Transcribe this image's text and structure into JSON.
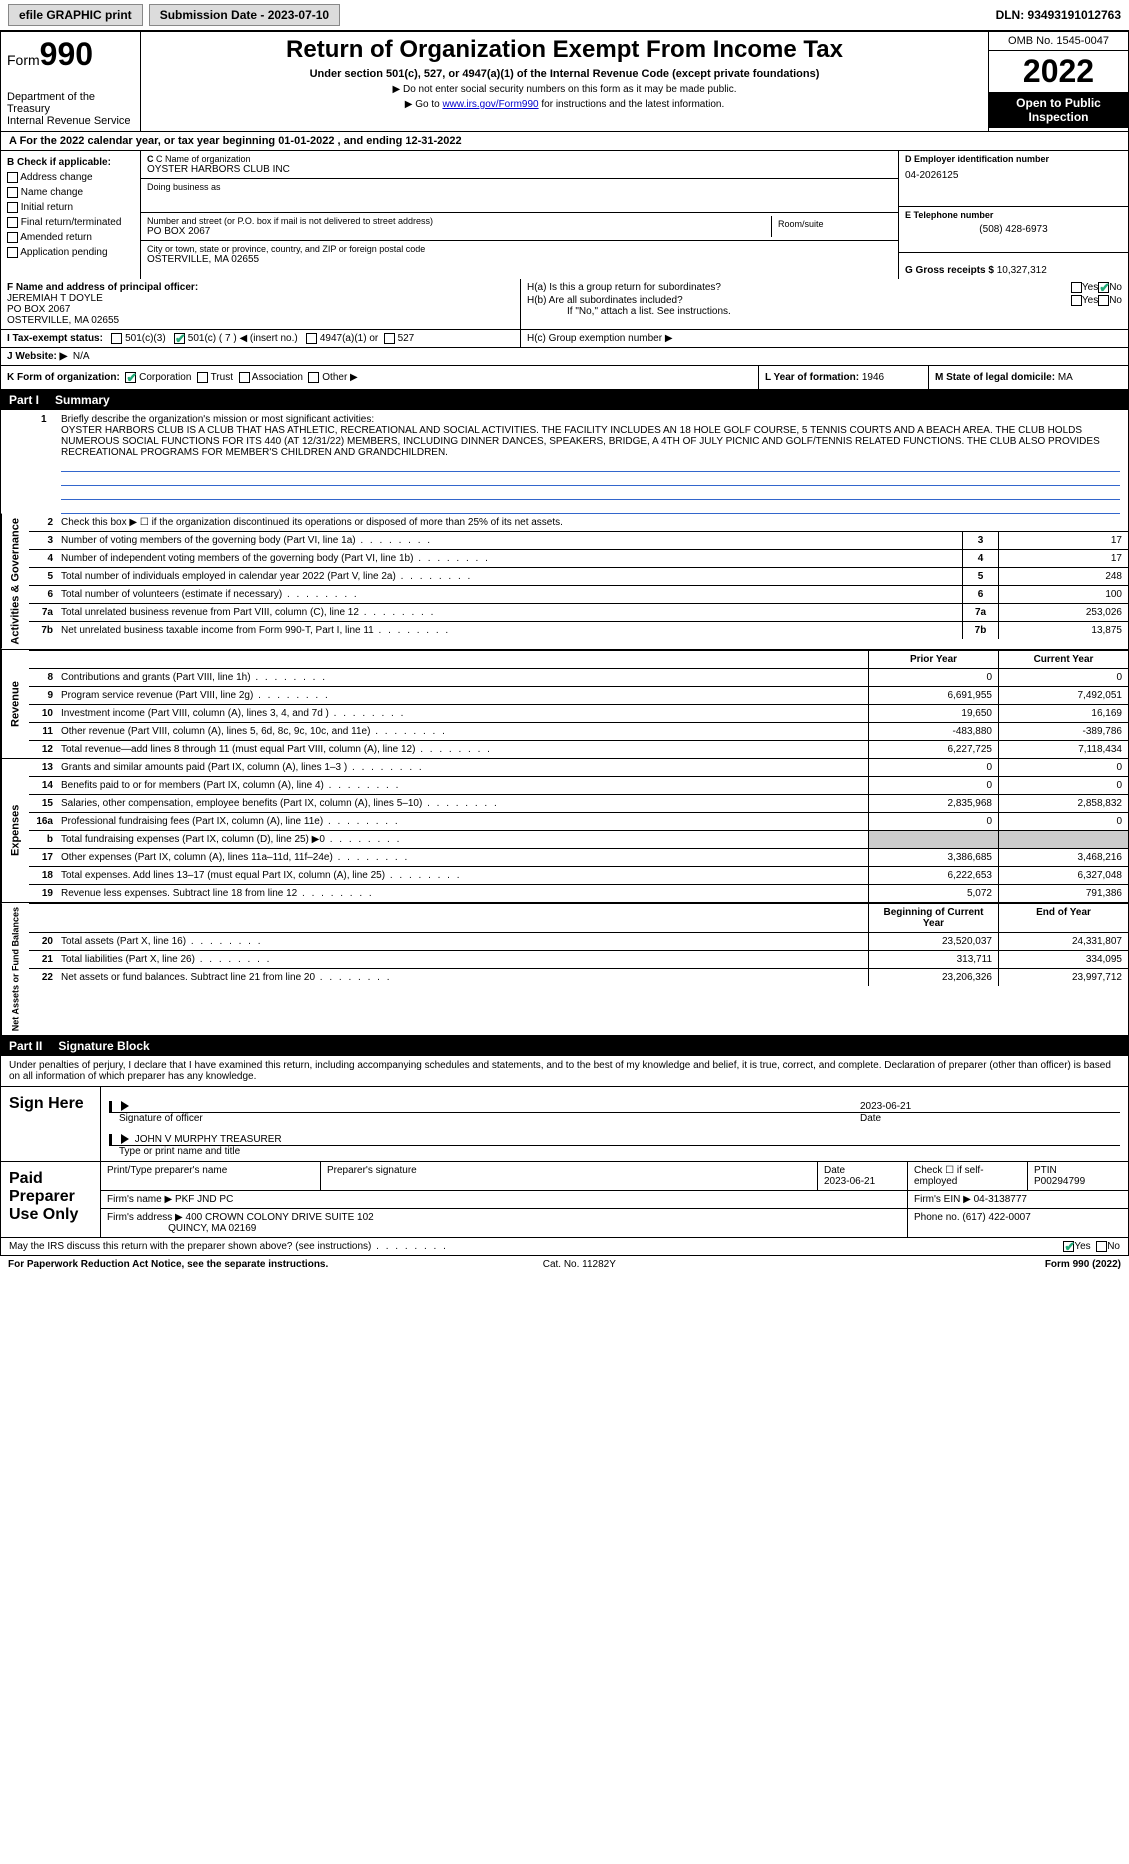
{
  "topbar": {
    "efile": "efile GRAPHIC print",
    "sub_date": "Submission Date - 2023-07-10",
    "dln": "DLN: 93493191012763"
  },
  "header": {
    "form_word": "Form",
    "form_num": "990",
    "dept": "Department of the Treasury",
    "irs": "Internal Revenue Service",
    "title": "Return of Organization Exempt From Income Tax",
    "subtitle": "Under section 501(c), 527, or 4947(a)(1) of the Internal Revenue Code (except private foundations)",
    "note1": "▶ Do not enter social security numbers on this form as it may be made public.",
    "note2_pre": "▶ Go to ",
    "note2_link": "www.irs.gov/Form990",
    "note2_post": " for instructions and the latest information.",
    "omb": "OMB No. 1545-0047",
    "year": "2022",
    "open": "Open to Public Inspection"
  },
  "rowA": "A For the 2022 calendar year, or tax year beginning 01-01-2022   , and ending 12-31-2022",
  "colB": {
    "hdr": "B Check if applicable:",
    "o1": "Address change",
    "o2": "Name change",
    "o3": "Initial return",
    "o4": "Final return/terminated",
    "o5": "Amended return",
    "o6": "Application pending"
  },
  "colC": {
    "name_lbl": "C Name of organization",
    "name": "OYSTER HARBORS CLUB INC",
    "dba_lbl": "Doing business as",
    "addr_lbl": "Number and street (or P.O. box if mail is not delivered to street address)",
    "addr": "PO BOX 2067",
    "room_lbl": "Room/suite",
    "city_lbl": "City or town, state or province, country, and ZIP or foreign postal code",
    "city": "OSTERVILLE, MA  02655"
  },
  "colD": {
    "ein_lbl": "D Employer identification number",
    "ein": "04-2026125",
    "tel_lbl": "E Telephone number",
    "tel": "(508) 428-6973",
    "gross_lbl": "G Gross receipts $",
    "gross": "10,327,312"
  },
  "rowF": {
    "lbl": "F  Name and address of principal officer:",
    "l1": "JEREMIAH T DOYLE",
    "l2": "PO BOX 2067",
    "l3": "OSTERVILLE, MA  02655"
  },
  "rowH": {
    "ha": "H(a)  Is this a group return for subordinates?",
    "hb": "H(b)  Are all subordinates included?",
    "hb_note": "If \"No,\" attach a list. See instructions.",
    "hc": "H(c)  Group exemption number ▶",
    "yes": "Yes",
    "no": "No"
  },
  "rowI": {
    "lbl": "I   Tax-exempt status:",
    "o1": "501(c)(3)",
    "o2": "501(c) ( 7 ) ◀ (insert no.)",
    "o3": "4947(a)(1) or",
    "o4": "527"
  },
  "rowJ": {
    "lbl": "J   Website: ▶",
    "val": "N/A"
  },
  "rowK": {
    "lbl": "K Form of organization:",
    "o1": "Corporation",
    "o2": "Trust",
    "o3": "Association",
    "o4": "Other ▶"
  },
  "rowL": {
    "lbl": "L Year of formation:",
    "val": "1946"
  },
  "rowM": {
    "lbl": "M State of legal domicile:",
    "val": "MA"
  },
  "part1": {
    "num": "Part I",
    "title": "Summary"
  },
  "mission": {
    "num": "1",
    "lbl": "Briefly describe the organization's mission or most significant activities:",
    "txt": "OYSTER HARBORS CLUB IS A CLUB THAT HAS ATHLETIC, RECREATIONAL AND SOCIAL ACTIVITIES. THE FACILITY INCLUDES AN 18 HOLE GOLF COURSE, 5 TENNIS COURTS AND A BEACH AREA. THE CLUB HOLDS NUMEROUS SOCIAL FUNCTIONS FOR ITS 440 (AT 12/31/22) MEMBERS, INCLUDING DINNER DANCES, SPEAKERS, BRIDGE, A 4TH OF JULY PICNIC AND GOLF/TENNIS RELATED FUNCTIONS. THE CLUB ALSO PROVIDES RECREATIONAL PROGRAMS FOR MEMBER'S CHILDREN AND GRANDCHILDREN."
  },
  "side": {
    "ag": "Activities & Governance",
    "rev": "Revenue",
    "exp": "Expenses",
    "nafb": "Net Assets or Fund Balances"
  },
  "lines_ag": [
    {
      "n": "2",
      "t": "Check this box ▶ ☐  if the organization discontinued its operations or disposed of more than 25% of its net assets."
    },
    {
      "n": "3",
      "t": "Number of voting members of the governing body (Part VI, line 1a)",
      "box": "3",
      "v": "17"
    },
    {
      "n": "4",
      "t": "Number of independent voting members of the governing body (Part VI, line 1b)",
      "box": "4",
      "v": "17"
    },
    {
      "n": "5",
      "t": "Total number of individuals employed in calendar year 2022 (Part V, line 2a)",
      "box": "5",
      "v": "248"
    },
    {
      "n": "6",
      "t": "Total number of volunteers (estimate if necessary)",
      "box": "6",
      "v": "100"
    },
    {
      "n": "7a",
      "t": "Total unrelated business revenue from Part VIII, column (C), line 12",
      "box": "7a",
      "v": "253,026"
    },
    {
      "n": "7b",
      "t": "Net unrelated business taxable income from Form 990-T, Part I, line 11",
      "box": "7b",
      "v": "13,875"
    }
  ],
  "hdr_py_cy": {
    "py": "Prior Year",
    "cy": "Current Year"
  },
  "lines_rev": [
    {
      "n": "8",
      "t": "Contributions and grants (Part VIII, line 1h)",
      "py": "0",
      "cy": "0"
    },
    {
      "n": "9",
      "t": "Program service revenue (Part VIII, line 2g)",
      "py": "6,691,955",
      "cy": "7,492,051"
    },
    {
      "n": "10",
      "t": "Investment income (Part VIII, column (A), lines 3, 4, and 7d )",
      "py": "19,650",
      "cy": "16,169"
    },
    {
      "n": "11",
      "t": "Other revenue (Part VIII, column (A), lines 5, 6d, 8c, 9c, 10c, and 11e)",
      "py": "-483,880",
      "cy": "-389,786"
    },
    {
      "n": "12",
      "t": "Total revenue—add lines 8 through 11 (must equal Part VIII, column (A), line 12)",
      "py": "6,227,725",
      "cy": "7,118,434"
    }
  ],
  "lines_exp": [
    {
      "n": "13",
      "t": "Grants and similar amounts paid (Part IX, column (A), lines 1–3 )",
      "py": "0",
      "cy": "0"
    },
    {
      "n": "14",
      "t": "Benefits paid to or for members (Part IX, column (A), line 4)",
      "py": "0",
      "cy": "0"
    },
    {
      "n": "15",
      "t": "Salaries, other compensation, employee benefits (Part IX, column (A), lines 5–10)",
      "py": "2,835,968",
      "cy": "2,858,832"
    },
    {
      "n": "16a",
      "t": "Professional fundraising fees (Part IX, column (A), line 11e)",
      "py": "0",
      "cy": "0"
    },
    {
      "n": "b",
      "t": "Total fundraising expenses (Part IX, column (D), line 25) ▶0",
      "py": "",
      "cy": "",
      "grey": true
    },
    {
      "n": "17",
      "t": "Other expenses (Part IX, column (A), lines 11a–11d, 11f–24e)",
      "py": "3,386,685",
      "cy": "3,468,216"
    },
    {
      "n": "18",
      "t": "Total expenses. Add lines 13–17 (must equal Part IX, column (A), line 25)",
      "py": "6,222,653",
      "cy": "6,327,048"
    },
    {
      "n": "19",
      "t": "Revenue less expenses. Subtract line 18 from line 12",
      "py": "5,072",
      "cy": "791,386"
    }
  ],
  "hdr_boy_eoy": {
    "boy": "Beginning of Current Year",
    "eoy": "End of Year"
  },
  "lines_na": [
    {
      "n": "20",
      "t": "Total assets (Part X, line 16)",
      "py": "23,520,037",
      "cy": "24,331,807"
    },
    {
      "n": "21",
      "t": "Total liabilities (Part X, line 26)",
      "py": "313,711",
      "cy": "334,095"
    },
    {
      "n": "22",
      "t": "Net assets or fund balances. Subtract line 21 from line 20",
      "py": "23,206,326",
      "cy": "23,997,712"
    }
  ],
  "part2": {
    "num": "Part II",
    "title": "Signature Block"
  },
  "sig_intro": "Under penalties of perjury, I declare that I have examined this return, including accompanying schedules and statements, and to the best of my knowledge and belief, it is true, correct, and complete. Declaration of preparer (other than officer) is based on all information of which preparer has any knowledge.",
  "sign": {
    "lbl": "Sign Here",
    "sig_of": "Signature of officer",
    "date": "2023-06-21",
    "date_lbl": "Date",
    "name": "JOHN V MURPHY  TREASURER",
    "name_lbl": "Type or print name and title"
  },
  "prep": {
    "lbl": "Paid Preparer Use Only",
    "h1": "Print/Type preparer's name",
    "h2": "Preparer's signature",
    "h3": "Date",
    "h3v": "2023-06-21",
    "h4": "Check ☐ if self-employed",
    "h5": "PTIN",
    "h5v": "P00294799",
    "firm_lbl": "Firm's name    ▶",
    "firm": "PKF JND PC",
    "ein_lbl": "Firm's EIN ▶",
    "ein": "04-3138777",
    "addr_lbl": "Firm's address ▶",
    "addr1": "400 CROWN COLONY DRIVE SUITE 102",
    "addr2": "QUINCY, MA  02169",
    "phone_lbl": "Phone no.",
    "phone": "(617) 422-0007"
  },
  "discuss": {
    "q": "May the IRS discuss this return with the preparer shown above? (see instructions)",
    "yes": "Yes",
    "no": "No"
  },
  "footer": {
    "l": "For Paperwork Reduction Act Notice, see the separate instructions.",
    "c": "Cat. No. 11282Y",
    "r": "Form 990 (2022)"
  }
}
